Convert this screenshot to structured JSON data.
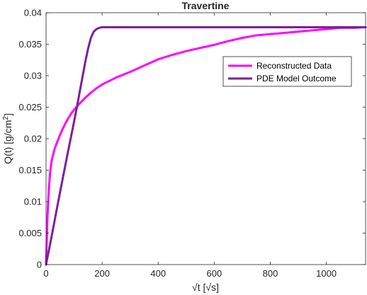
{
  "chart_data": {
    "type": "line",
    "title": "Travertine",
    "xlabel": "√t [√s]",
    "ylabel": "Q(t) [g/cm²]",
    "ylabel_parts": {
      "pre": "Q(t) [g/cm",
      "sup": "2",
      "post": "]"
    },
    "xlim": [
      0,
      1140
    ],
    "ylim": [
      0,
      0.04
    ],
    "xticks": [
      0,
      200,
      400,
      600,
      800,
      1000
    ],
    "xtick_labels": [
      "0",
      "200",
      "400",
      "600",
      "800",
      "1000"
    ],
    "yticks": [
      0,
      0.005,
      0.01,
      0.015,
      0.02,
      0.025,
      0.03,
      0.035,
      0.04
    ],
    "ytick_labels": [
      "0",
      "0.005",
      "0.01",
      "0.015",
      "0.02",
      "0.025",
      "0.03",
      "0.035",
      "0.04"
    ],
    "grid": false,
    "legend_position": "top-right",
    "series": [
      {
        "name": "Reconstructed Data",
        "color": "#ff00ff",
        "x": [
          0,
          2,
          5,
          10,
          15,
          20,
          30,
          40,
          50,
          60,
          70,
          80,
          90,
          100,
          120,
          140,
          160,
          180,
          200,
          250,
          300,
          350,
          400,
          450,
          500,
          550,
          600,
          650,
          700,
          750,
          800,
          850,
          900,
          950,
          1000,
          1050,
          1100,
          1140
        ],
        "y": [
          0,
          0.003,
          0.0075,
          0.012,
          0.0148,
          0.0165,
          0.0183,
          0.0195,
          0.0206,
          0.0216,
          0.0225,
          0.0233,
          0.024,
          0.0246,
          0.0256,
          0.0265,
          0.0273,
          0.028,
          0.0286,
          0.0297,
          0.0306,
          0.0316,
          0.0326,
          0.0333,
          0.0339,
          0.0344,
          0.0349,
          0.0355,
          0.036,
          0.0364,
          0.0366,
          0.0368,
          0.037,
          0.0372,
          0.0374,
          0.0376,
          0.0376,
          0.0377
        ]
      },
      {
        "name": "PDE Model Outcome",
        "color": "#7e1e9c",
        "x": [
          0,
          20,
          40,
          60,
          80,
          100,
          110,
          120,
          130,
          140,
          150,
          160,
          170,
          180,
          190,
          200,
          220,
          250,
          300,
          400,
          600,
          800,
          1000,
          1140
        ],
        "y": [
          0,
          0.0045,
          0.0092,
          0.0138,
          0.0183,
          0.0227,
          0.025,
          0.0274,
          0.0298,
          0.0322,
          0.0343,
          0.036,
          0.037,
          0.0374,
          0.0376,
          0.0377,
          0.0377,
          0.0377,
          0.0377,
          0.0377,
          0.0377,
          0.0377,
          0.0377,
          0.0377
        ]
      }
    ]
  }
}
